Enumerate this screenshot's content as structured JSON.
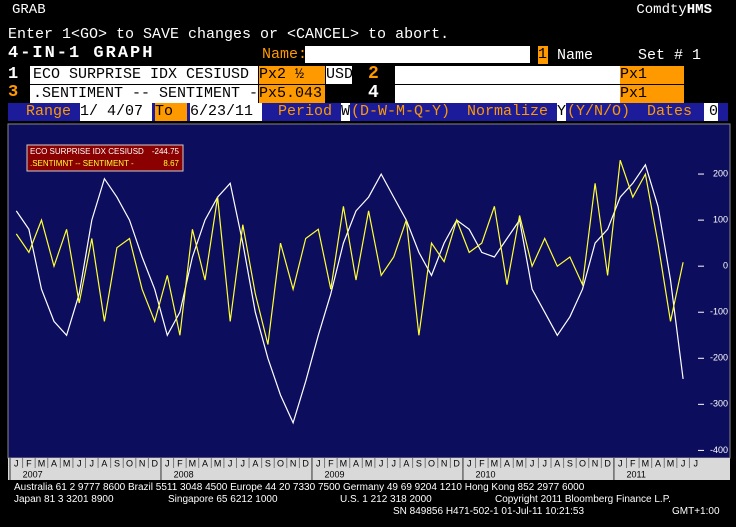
{
  "header": {
    "title": "GRAB",
    "brand_prefix": "Comdty",
    "brand": "HMS",
    "prompt": "Enter 1<GO> to SAVE changes or <CANCEL> to abort.",
    "graph_title": "4-IN-1 GRAPH",
    "name_label": "Name:",
    "name_num": "1",
    "name_word": "Name",
    "set_label": "Set # 1"
  },
  "rows": [
    {
      "num": "1",
      "security": "ECO SURPRISE IDX CESIUSD",
      "px": "Px2 ½",
      "ccy": "USD",
      "num2": "2",
      "px2": "Px1"
    },
    {
      "num": "3",
      "security": ".SENTIMENT -- SENTIMENT -",
      "px": "Px5.043",
      "num2": "4",
      "px2": "Px1"
    }
  ],
  "range": {
    "label": "Range",
    "from": "1/ 4/07",
    "to_label": "To",
    "to": "6/23/11",
    "period_label": "Period",
    "period": "W",
    "period_opts": "(D-W-M-Q-Y)",
    "normalize_label": "Normalize",
    "normalize": "Y",
    "normalize_opts": "(Y/N/O)",
    "dates_label": "Dates",
    "dates": "0"
  },
  "chart_data": {
    "type": "line",
    "categories": [
      "J",
      "F",
      "M",
      "A",
      "M",
      "J",
      "J",
      "A",
      "S",
      "O",
      "N",
      "D",
      "J",
      "F",
      "M",
      "A",
      "M",
      "J",
      "J",
      "A",
      "S",
      "O",
      "N",
      "D",
      "J",
      "F",
      "M",
      "A",
      "M",
      "J",
      "J",
      "A",
      "S",
      "O",
      "N",
      "D",
      "J",
      "F",
      "M",
      "A",
      "M",
      "J",
      "J",
      "A",
      "S",
      "O",
      "N",
      "D",
      "J",
      "F",
      "M",
      "A",
      "M",
      "J",
      "J"
    ],
    "years": [
      "2007",
      "2008",
      "2009",
      "2010",
      "2011"
    ],
    "series": [
      {
        "name": "ECO SURPRISE IDX CESIUSD",
        "last_label": "-244.75",
        "color": "#ffffff",
        "values": [
          120,
          80,
          -50,
          -120,
          -150,
          -60,
          100,
          190,
          150,
          100,
          20,
          -50,
          -150,
          -100,
          20,
          100,
          150,
          180,
          50,
          -100,
          -200,
          -280,
          -340,
          -250,
          -150,
          -60,
          50,
          120,
          150,
          200,
          150,
          100,
          30,
          -20,
          50,
          100,
          80,
          30,
          20,
          60,
          100,
          -50,
          -100,
          -150,
          -110,
          -50,
          50,
          80,
          150,
          180,
          220,
          130,
          -30,
          -244.75,
          null
        ]
      },
      {
        "name": ".SENTIMNT -- SENTIMENT -",
        "last_label": "8.67",
        "color": "#ffff33",
        "values": [
          70,
          30,
          100,
          0,
          80,
          -80,
          60,
          -120,
          40,
          60,
          -50,
          -120,
          -20,
          -150,
          80,
          -30,
          150,
          -120,
          90,
          -60,
          -170,
          50,
          -50,
          60,
          80,
          -50,
          130,
          -30,
          120,
          -20,
          20,
          100,
          -150,
          50,
          10,
          100,
          30,
          50,
          130,
          -40,
          110,
          0,
          60,
          0,
          20,
          -40,
          180,
          -20,
          230,
          150,
          200,
          50,
          -120,
          8.67,
          null
        ]
      }
    ],
    "ylim": [
      -410,
      300
    ],
    "yticks": [
      200,
      100,
      0,
      -100,
      -200,
      -300,
      -400
    ],
    "grid": false,
    "legend": "top-left"
  },
  "footer": {
    "line1": "Australia 61 2 9777 8600 Brazil 5511 3048 4500 Europe 44 20 7330 7500 Germany 49 69 9204 1210 Hong Kong 852 2977 6000",
    "japan": "Japan 81 3 3201 8900",
    "singapore": "Singapore 65 6212 1000",
    "us": "U.S. 1 212 318 2000",
    "copyright": "Copyright 2011 Bloomberg Finance L.P.",
    "sn": "SN 849856 H471-502-1 01-Jul-11 10:21:53",
    "gmt": "GMT+1:00"
  }
}
